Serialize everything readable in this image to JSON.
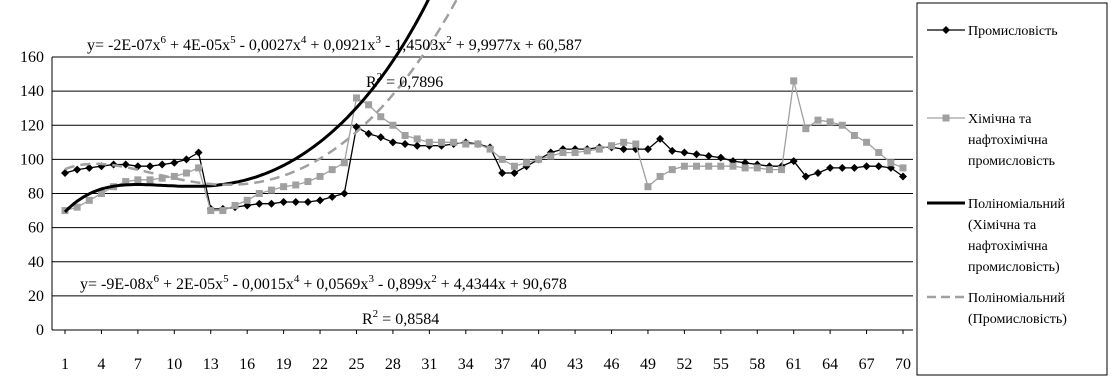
{
  "chart_data": {
    "type": "line",
    "title": "",
    "xlabel": "",
    "ylabel": "",
    "ylim": [
      0,
      160
    ],
    "yticks": [
      "0",
      "20",
      "40",
      "60",
      "80",
      "100",
      "120",
      "140",
      "160"
    ],
    "xlim": [
      1,
      70
    ],
    "xticks": [
      "1",
      "4",
      "7",
      "10",
      "13",
      "16",
      "19",
      "22",
      "25",
      "28",
      "31",
      "34",
      "37",
      "40",
      "43",
      "46",
      "49",
      "52",
      "55",
      "58",
      "61",
      "64",
      "67",
      "70"
    ],
    "grid": "horizontal",
    "legend_position": "right",
    "x": [
      1,
      2,
      3,
      4,
      5,
      6,
      7,
      8,
      9,
      10,
      11,
      12,
      13,
      14,
      15,
      16,
      17,
      18,
      19,
      20,
      21,
      22,
      23,
      24,
      25,
      26,
      27,
      28,
      29,
      30,
      31,
      32,
      33,
      34,
      35,
      36,
      37,
      38,
      39,
      40,
      41,
      42,
      43,
      44,
      45,
      46,
      47,
      48,
      49,
      50,
      51,
      52,
      53,
      54,
      55,
      56,
      57,
      58,
      59,
      60,
      61,
      62,
      63,
      64,
      65,
      66,
      67,
      68,
      69,
      70
    ],
    "series": [
      {
        "name": "Промисловість",
        "color": "#000000",
        "marker": "diamond",
        "line_style": "solid",
        "values": [
          92,
          94,
          95,
          96,
          97,
          97,
          96,
          96,
          97,
          98,
          100,
          104,
          71,
          71,
          72,
          73,
          74,
          74,
          75,
          75,
          75,
          76,
          78,
          80,
          119,
          115,
          113,
          110,
          109,
          108,
          108,
          108,
          109,
          110,
          109,
          107,
          92,
          92,
          96,
          100,
          104,
          106,
          106,
          106,
          107,
          107,
          106,
          106,
          106,
          112,
          105,
          104,
          103,
          102,
          101,
          99,
          98,
          97,
          96,
          96,
          99,
          90,
          92,
          95,
          95,
          95,
          96,
          96,
          95,
          90
        ]
      },
      {
        "name": "Хімічна та нафтохімічна промисловість",
        "color": "#a0a0a0",
        "marker": "square",
        "line_style": "solid",
        "values": [
          70,
          72,
          76,
          80,
          84,
          87,
          88,
          88,
          89,
          90,
          92,
          95,
          70,
          70,
          73,
          76,
          80,
          82,
          84,
          85,
          87,
          90,
          94,
          98,
          136,
          132,
          125,
          120,
          114,
          112,
          110,
          110,
          110,
          109,
          109,
          106,
          100,
          96,
          98,
          100,
          102,
          104,
          104,
          105,
          106,
          108,
          110,
          109,
          84,
          90,
          94,
          96,
          96,
          96,
          96,
          96,
          95,
          95,
          94,
          94,
          146,
          118,
          123,
          122,
          120,
          114,
          110,
          104,
          98,
          95
        ]
      },
      {
        "name": "Поліноміальний (Хімічна та нафтохімічна промисловість)",
        "color": "#000000",
        "marker": "none",
        "line_style": "solid-thick",
        "fit": "poly6",
        "coef": [
          60.587,
          9.9977,
          -1.4503,
          0.0921,
          -0.0027,
          4e-05,
          -2e-07
        ]
      },
      {
        "name": "Поліноміальний (Промисловість)",
        "color": "#a0a0a0",
        "marker": "none",
        "line_style": "dashed",
        "fit": "poly6",
        "coef": [
          90.678,
          4.4344,
          -0.899,
          0.0569,
          -0.0015,
          2e-05,
          -9e-08
        ]
      }
    ],
    "annotations": [
      {
        "text": "y= -2E-07x6 + 4E-05x5 - 0,0027x4 + 0,0921x3 - 1,4503x2 + 9,9977x + 60,587",
        "r2_text": "R2 = 0,7896"
      },
      {
        "text": "y= -9E-08x6 + 2E-05x5 - 0,0015x4 + 0,0569x3 - 0,899x2 + 4,4344x + 90,678",
        "r2_text": "R2 = 0,8584"
      }
    ]
  },
  "equations": {
    "upper": {
      "eq_parts": [
        "y= -2E-07x",
        "6",
        " + 4E-05x",
        "5",
        " - 0,0027x",
        "4",
        " + 0,0921x",
        "3",
        " - 1,4503x",
        "2",
        " + 9,9977x + 60,587"
      ],
      "r2_parts": [
        "R",
        "2",
        " = 0,7896"
      ]
    },
    "lower": {
      "eq_parts": [
        "y= -9E-08x",
        "6",
        " + 2E-05x",
        "5",
        " - 0,0015x",
        "4",
        " + 0,0569x",
        "3",
        " - 0,899x",
        "2",
        " + 4,4344x + 90,678"
      ],
      "r2_parts": [
        "R",
        "2",
        " = 0,8584"
      ]
    }
  },
  "legend": {
    "items": [
      {
        "lines": [
          "Промисловість"
        ]
      },
      {
        "lines": [
          "Хімічна та",
          "нафтохімічна",
          "промисловість"
        ]
      },
      {
        "lines": [
          "Поліноміальний",
          "(Хімічна та",
          "нафтохімічна",
          "промисловість)"
        ]
      },
      {
        "lines": [
          "Поліноміальний",
          "(Промисловість)"
        ]
      }
    ]
  }
}
